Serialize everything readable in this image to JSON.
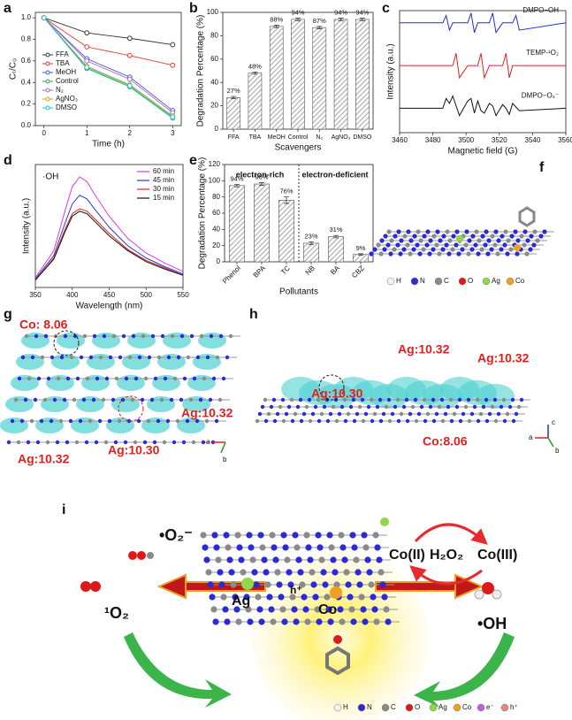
{
  "chart_data": [
    {
      "type": "line",
      "label": "a",
      "xlabel": "Time (h)",
      "ylabel": "Cₜ/C₀",
      "x": [
        0,
        1,
        2,
        3
      ],
      "xlim": [
        -0.2,
        3.2
      ],
      "xticks": [
        0,
        1,
        2,
        3
      ],
      "ylim": [
        0,
        1.05
      ],
      "yticks": [
        {
          "value": 0,
          "label": "0.0"
        },
        {
          "value": 0.2,
          "label": "0.2"
        },
        {
          "value": 0.4,
          "label": "0.4"
        },
        {
          "value": 0.6,
          "label": "0.6"
        },
        {
          "value": 0.8,
          "label": "0.8"
        },
        {
          "value": 1,
          "label": "1.0"
        }
      ],
      "legend": "left",
      "series": [
        {
          "name": "FFA",
          "color": "#333333",
          "values": [
            1,
            0.86,
            0.81,
            0.75
          ]
        },
        {
          "name": "TBA",
          "color": "#e8382c",
          "values": [
            1,
            0.73,
            0.65,
            0.56
          ]
        },
        {
          "name": "MeOH",
          "color": "#3a5fd9",
          "values": [
            1,
            0.62,
            0.45,
            0.14
          ]
        },
        {
          "name": "Control",
          "color": "#2aa84a",
          "values": [
            1,
            0.53,
            0.36,
            0.07
          ]
        },
        {
          "name": "N₂",
          "color": "#b25fd3",
          "values": [
            1,
            0.6,
            0.43,
            0.12
          ]
        },
        {
          "name": "AgNO₃",
          "color": "#c9a516",
          "values": [
            1,
            0.55,
            0.38,
            0.09
          ]
        },
        {
          "name": "DMSO",
          "color": "#1cc6d6",
          "values": [
            1,
            0.54,
            0.37,
            0.08
          ]
        }
      ]
    },
    {
      "type": "bar",
      "label": "b",
      "xlabel": "Scavengers",
      "ylabel": "Degradation Percentage (%)",
      "categories": [
        "FFA",
        "TBA",
        "MeOH",
        "Control",
        "N₂",
        "AgNO₃",
        "DMSO"
      ],
      "values": [
        27,
        48,
        88,
        94,
        87,
        94,
        94
      ],
      "errors": [
        1,
        1,
        1,
        1,
        1,
        1,
        1
      ],
      "value_labels": [
        "27%",
        "48%",
        "88%",
        "94%",
        "87%",
        "94%",
        "94%"
      ],
      "color": "#a9a9a9",
      "ylim": [
        0,
        100
      ],
      "yticks": [
        0,
        20,
        40,
        60,
        80,
        100
      ]
    },
    {
      "type": "line",
      "label": "c",
      "xlabel": "Magnetic field (G)",
      "ylabel": "Intensity (a.u.)",
      "x": [
        3460,
        3486,
        3488,
        3490,
        3492,
        3494,
        3496,
        3501,
        3503,
        3505,
        3507,
        3509,
        3511,
        3514,
        3516,
        3518,
        3522,
        3524,
        3526,
        3528,
        3530,
        3532,
        3560
      ],
      "xlim": [
        3460,
        3560
      ],
      "xticks": [
        3460,
        3480,
        3500,
        3520,
        3540,
        3560
      ],
      "ylim": [
        0,
        10
      ],
      "legend": "right",
      "series": [
        {
          "name": "DMPO−OH",
          "color": "#1f2fd6",
          "values": [
            9,
            9,
            9.6,
            8.4,
            9,
            9,
            9,
            9,
            9.8,
            8.2,
            9,
            9,
            9,
            9,
            9.8,
            8.2,
            9,
            9,
            9,
            9,
            9.6,
            8.4,
            9
          ]
        },
        {
          "name": "TEMP-¹O₂",
          "color": "#e02020",
          "values": [
            5.5,
            5.5,
            5.5,
            5.5,
            5.5,
            6.5,
            4.5,
            5.5,
            5.5,
            5.5,
            5.5,
            6.5,
            4.5,
            5.5,
            5.5,
            5.5,
            5.5,
            6.5,
            4.5,
            5.5,
            5.5,
            5.5,
            5.5
          ]
        },
        {
          "name": "DMPO−O₂⁻",
          "color": "#111111",
          "values": [
            2,
            2,
            2.8,
            2.4,
            3,
            2.2,
            1.4,
            2.6,
            2.8,
            1.6,
            2.6,
            1.8,
            1.6,
            2.4,
            2.2,
            1.4,
            2.3,
            2,
            1.5,
            2.4,
            2.1,
            1.8,
            2
          ]
        }
      ]
    },
    {
      "type": "line",
      "label": "d",
      "xlabel": "Wavelength (nm)",
      "ylabel": "Intensity (a.u.)",
      "annotations": [
        {
          "text": "·OH",
          "color": "#111111"
        }
      ],
      "x": [
        350,
        375,
        390,
        400,
        410,
        420,
        430,
        450,
        475,
        500,
        525,
        550
      ],
      "xlim": [
        350,
        550
      ],
      "xticks": [
        350,
        400,
        450,
        500,
        550
      ],
      "ylim": [
        0,
        1
      ],
      "legend": "upper right",
      "series": [
        {
          "name": "60 min",
          "color": "#e33be0",
          "values": [
            0.08,
            0.3,
            0.62,
            0.82,
            0.9,
            0.86,
            0.76,
            0.58,
            0.4,
            0.28,
            0.2,
            0.13
          ]
        },
        {
          "name": "45 min",
          "color": "#2b3bd8",
          "values": [
            0.07,
            0.26,
            0.52,
            0.68,
            0.75,
            0.72,
            0.64,
            0.49,
            0.34,
            0.24,
            0.17,
            0.11
          ]
        },
        {
          "name": "30 min",
          "color": "#e02020",
          "values": [
            0.06,
            0.24,
            0.47,
            0.6,
            0.64,
            0.62,
            0.56,
            0.44,
            0.31,
            0.22,
            0.16,
            0.1
          ]
        },
        {
          "name": "15 min",
          "color": "#111111",
          "values": [
            0.06,
            0.23,
            0.45,
            0.58,
            0.62,
            0.6,
            0.54,
            0.42,
            0.3,
            0.21,
            0.15,
            0.1
          ]
        }
      ]
    },
    {
      "type": "bar",
      "label": "e",
      "xlabel": "Pollutants",
      "ylabel": "Degradation Percentage (%)",
      "annotations": [
        {
          "text": "electron-rich",
          "color": "#e0201b"
        },
        {
          "text": "electron-deficient",
          "color": "#2030c8"
        }
      ],
      "categories": [
        "Phenol",
        "BPA",
        "TC",
        "NB",
        "BA",
        "CBZ"
      ],
      "values": [
        94,
        96,
        76,
        23,
        31,
        9
      ],
      "errors": [
        1.5,
        1.5,
        4,
        1.5,
        1.5,
        1
      ],
      "value_labels": [
        "94%",
        "96%",
        "76%",
        "23%",
        "31%",
        "9%"
      ],
      "color": "#a9a9a9",
      "ylim": [
        0,
        120
      ],
      "yticks": [
        0,
        20,
        40,
        60,
        80,
        100,
        120
      ]
    }
  ],
  "diagrams": [
    {
      "label": "f",
      "legend": [
        {
          "name": "H",
          "color": "#f2f2f2"
        },
        {
          "name": "N",
          "color": "#2a2ad8"
        },
        {
          "name": "C",
          "color": "#8a8a8a"
        },
        {
          "name": "O",
          "color": "#e01818"
        },
        {
          "name": "Ag",
          "color": "#8fd84a"
        },
        {
          "name": "Co",
          "color": "#f0a020"
        }
      ]
    },
    {
      "label": "g",
      "labels": [
        "Co: 8.06",
        "Ag:10.32",
        "Ag:10.32",
        "Ag:10.30"
      ],
      "axes": [
        "a",
        "b"
      ]
    },
    {
      "label": "h",
      "labels": [
        "Ag:10.30",
        "Ag:10.32",
        "Ag:10.32",
        "Co:8.06"
      ],
      "axes": [
        "a",
        "b",
        "c"
      ]
    },
    {
      "label": "i",
      "labels": [
        "•O₂⁻",
        "¹O₂",
        "•OH",
        "Ag",
        "Co",
        "h⁺",
        "Co(II)",
        "H₂O₂",
        "Co(III)"
      ],
      "legend": [
        {
          "name": "H",
          "color": "#f2f2f2"
        },
        {
          "name": "N",
          "color": "#2a2ad8"
        },
        {
          "name": "C",
          "color": "#8a8a8a"
        },
        {
          "name": "O",
          "color": "#e01818"
        },
        {
          "name": "Ag",
          "color": "#8fd84a"
        },
        {
          "name": "Co",
          "color": "#f0a020"
        },
        {
          "name": "e⁻",
          "color": "#c060e0"
        },
        {
          "name": "h⁺",
          "color": "#f08080"
        }
      ]
    }
  ]
}
